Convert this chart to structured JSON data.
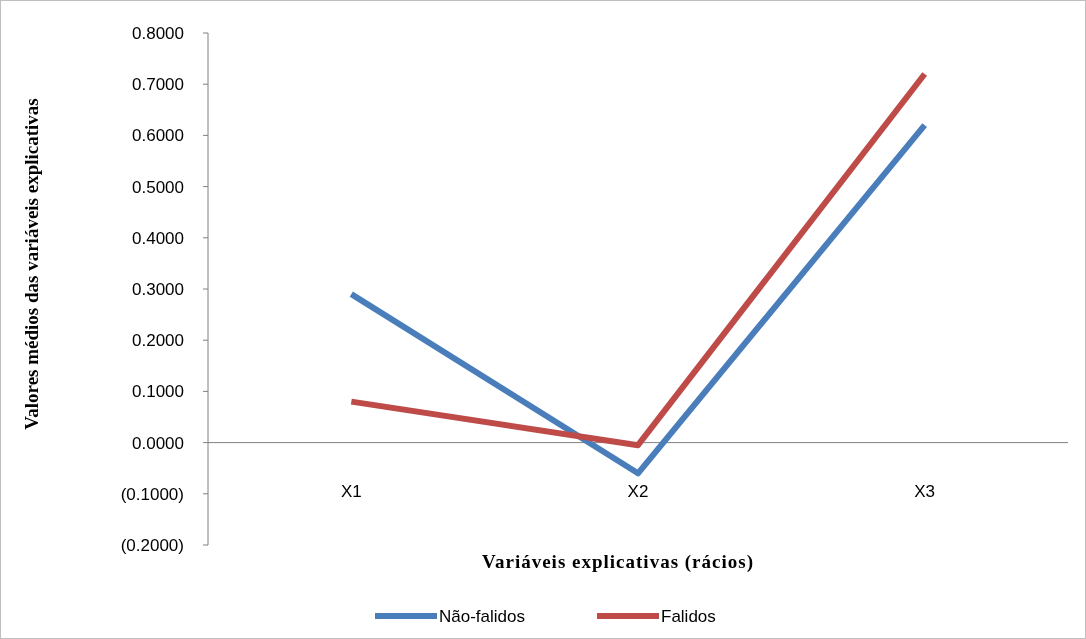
{
  "chart_data": {
    "type": "line",
    "xlabel": "Variáveis explicativas (rácios)",
    "ylabel": "Valores médios das variáveis explicativas",
    "categories": [
      "X1",
      "X2",
      "X3"
    ],
    "series": [
      {
        "name": "Não-falidos",
        "color": "#4a7ebb",
        "values": [
          0.29,
          -0.06,
          0.62
        ]
      },
      {
        "name": "Falidos",
        "color": "#be4b48",
        "values": [
          0.08,
          -0.005,
          0.72
        ]
      }
    ],
    "ylim": [
      -0.2,
      0.8
    ],
    "yticks": [
      {
        "value": -0.2,
        "label": "(0.2000)"
      },
      {
        "value": -0.1,
        "label": "(0.1000)"
      },
      {
        "value": 0,
        "label": "0.0000"
      },
      {
        "value": 0.1,
        "label": "0.1000"
      },
      {
        "value": 0.2,
        "label": "0.2000"
      },
      {
        "value": 0.3,
        "label": "0.3000"
      },
      {
        "value": 0.4,
        "label": "0.4000"
      },
      {
        "value": 0.5,
        "label": "0.5000"
      },
      {
        "value": 0.6,
        "label": "0.6000"
      },
      {
        "value": 0.7,
        "label": "0.7000"
      },
      {
        "value": 0.8,
        "label": "0.8000"
      }
    ],
    "grid": false,
    "legend": "bottom",
    "marker": "none",
    "line_style": "solid"
  }
}
